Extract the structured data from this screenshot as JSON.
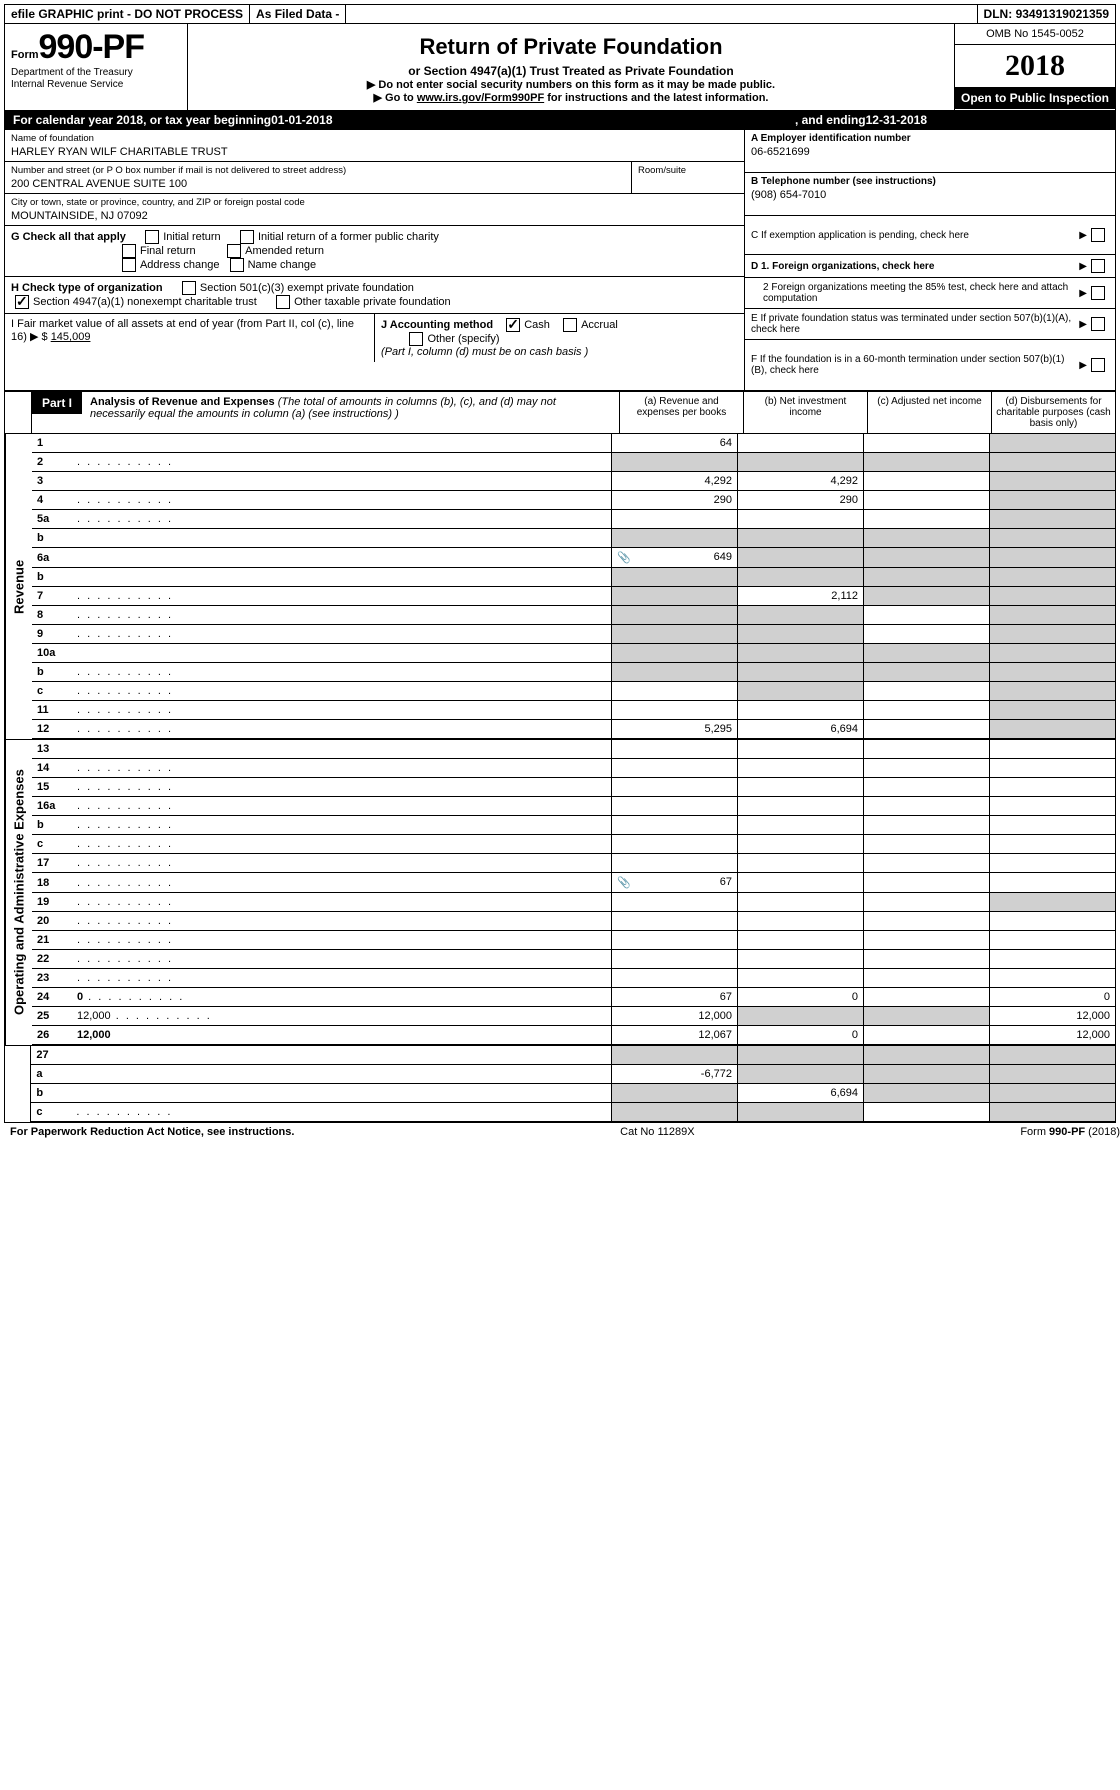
{
  "topbar": {
    "efile": "efile GRAPHIC print - DO NOT PROCESS",
    "asfiled": "As Filed Data -",
    "dln_label": "DLN:",
    "dln": "93491319021359"
  },
  "form_box": {
    "form_word": "Form",
    "form_number": "990-PF",
    "dept1": "Department of the Treasury",
    "dept2": "Internal Revenue Service"
  },
  "header": {
    "title": "Return of Private Foundation",
    "subtitle": "or Section 4947(a)(1) Trust Treated as Private Foundation",
    "note1": "Do not enter social security numbers on this form as it may be made public.",
    "note2_pre": "Go to ",
    "note2_link": "www.irs.gov/Form990PF",
    "note2_post": " for instructions and the latest information."
  },
  "header_right": {
    "omb": "OMB No 1545-0052",
    "year": "2018",
    "inspection": "Open to Public Inspection"
  },
  "cal_year": {
    "text_pre": "For calendar year 2018, or tax year beginning ",
    "begin": "01-01-2018",
    "mid": ", and ending ",
    "end": "12-31-2018"
  },
  "fields": {
    "name_label": "Name of foundation",
    "name": "HARLEY RYAN WILF CHARITABLE TRUST",
    "addr_label": "Number and street (or P O  box number if mail is not delivered to street address)",
    "addr": "200 CENTRAL AVENUE SUITE 100",
    "room_label": "Room/suite",
    "city_label": "City or town, state or province, country, and ZIP or foreign postal code",
    "city": "MOUNTAINSIDE, NJ  07092",
    "ein_label": "A Employer identification number",
    "ein": "06-6521699",
    "phone_label": "B Telephone number (see instructions)",
    "phone": "(908) 654-7010",
    "c_label": "C If exemption application is pending, check here",
    "d1": "D 1. Foreign organizations, check here",
    "d2": "2  Foreign organizations meeting the 85% test, check here and attach computation",
    "e_label": "E  If private foundation status was terminated under section 507(b)(1)(A), check here",
    "f_label": "F  If the foundation is in a 60-month termination under section 507(b)(1)(B), check here"
  },
  "g": {
    "label": "G Check all that apply",
    "initial": "Initial return",
    "initial_former": "Initial return of a former public charity",
    "final": "Final return",
    "amended": "Amended return",
    "address": "Address change",
    "name_change": "Name change"
  },
  "h": {
    "label": "H Check type of organization",
    "sec501": "Section 501(c)(3) exempt private foundation",
    "sec4947": "Section 4947(a)(1) nonexempt charitable trust",
    "other_taxable": "Other taxable private foundation"
  },
  "i": {
    "label_pre": "I Fair market value of all assets at end of year (from Part II, col  (c), line 16) ",
    "arrow": "▶",
    "dollar": "$",
    "value": "145,009"
  },
  "j": {
    "label": "J Accounting method",
    "cash": "Cash",
    "accrual": "Accrual",
    "other": "Other (specify)",
    "note": "(Part I, column (d) must be on cash basis )"
  },
  "part1": {
    "label": "Part I",
    "title": "Analysis of Revenue and Expenses",
    "desc": " (The total of amounts in columns (b), (c), and (d) may not necessarily equal the amounts in column (a) (see instructions) )",
    "col_a": "(a) Revenue and expenses per books",
    "col_b": "(b) Net investment income",
    "col_c": "(c) Adjusted net income",
    "col_d": "(d) Disbursements for charitable purposes (cash basis only)"
  },
  "vlabels": {
    "revenue": "Revenue",
    "expenses": "Operating and Administrative Expenses"
  },
  "lines": [
    {
      "n": "1",
      "d": "",
      "a": "64",
      "b": "",
      "c": "",
      "d_shade": true
    },
    {
      "n": "2",
      "d": "",
      "dots": true,
      "a": "",
      "b": "",
      "c": "",
      "a_shade": true,
      "b_shade": true,
      "c_shade": true,
      "d_shade": true
    },
    {
      "n": "3",
      "d": "",
      "a": "4,292",
      "b": "4,292",
      "c": "",
      "d_shade": true
    },
    {
      "n": "4",
      "d": "",
      "dots": true,
      "a": "290",
      "b": "290",
      "c": "",
      "d_shade": true
    },
    {
      "n": "5a",
      "d": "",
      "dots": true,
      "a": "",
      "b": "",
      "c": "",
      "d_shade": true
    },
    {
      "n": "b",
      "d": "",
      "a": "",
      "b": "",
      "c": "",
      "a_shade": true,
      "b_shade": true,
      "c_shade": true,
      "d_shade": true
    },
    {
      "n": "6a",
      "d": "",
      "icon": true,
      "a": "649",
      "b": "",
      "c": "",
      "b_shade": true,
      "c_shade": true,
      "d_shade": true
    },
    {
      "n": "b",
      "d": "",
      "a": "",
      "b": "",
      "c": "",
      "a_shade": true,
      "b_shade": true,
      "c_shade": true,
      "d_shade": true
    },
    {
      "n": "7",
      "d": "",
      "dots": true,
      "a": "",
      "b": "2,112",
      "c": "",
      "a_shade": true,
      "c_shade": true,
      "d_shade": true
    },
    {
      "n": "8",
      "d": "",
      "dots": true,
      "a": "",
      "b": "",
      "c": "",
      "a_shade": true,
      "b_shade": true,
      "d_shade": true
    },
    {
      "n": "9",
      "d": "",
      "dots": true,
      "a": "",
      "b": "",
      "c": "",
      "a_shade": true,
      "b_shade": true,
      "d_shade": true
    },
    {
      "n": "10a",
      "d": "",
      "a": "",
      "b": "",
      "c": "",
      "a_shade": true,
      "b_shade": true,
      "c_shade": true,
      "d_shade": true
    },
    {
      "n": "b",
      "d": "",
      "dots": true,
      "a": "",
      "b": "",
      "c": "",
      "a_shade": true,
      "b_shade": true,
      "c_shade": true,
      "d_shade": true
    },
    {
      "n": "c",
      "d": "",
      "dots": true,
      "a": "",
      "b": "",
      "c": "",
      "b_shade": true,
      "d_shade": true
    },
    {
      "n": "11",
      "d": "",
      "dots": true,
      "a": "",
      "b": "",
      "c": "",
      "d_shade": true
    },
    {
      "n": "12",
      "d": "",
      "dots": true,
      "bold": true,
      "a": "5,295",
      "b": "6,694",
      "c": "",
      "d_shade": true
    }
  ],
  "exp_lines": [
    {
      "n": "13",
      "d": "",
      "a": "",
      "b": "",
      "c": ""
    },
    {
      "n": "14",
      "d": "",
      "dots": true,
      "a": "",
      "b": "",
      "c": ""
    },
    {
      "n": "15",
      "d": "",
      "dots": true,
      "a": "",
      "b": "",
      "c": ""
    },
    {
      "n": "16a",
      "d": "",
      "dots": true,
      "a": "",
      "b": "",
      "c": ""
    },
    {
      "n": "b",
      "d": "",
      "dots": true,
      "a": "",
      "b": "",
      "c": ""
    },
    {
      "n": "c",
      "d": "",
      "dots": true,
      "a": "",
      "b": "",
      "c": ""
    },
    {
      "n": "17",
      "d": "",
      "dots": true,
      "a": "",
      "b": "",
      "c": ""
    },
    {
      "n": "18",
      "d": "",
      "dots": true,
      "icon": true,
      "a": "67",
      "b": "",
      "c": ""
    },
    {
      "n": "19",
      "d": "",
      "dots": true,
      "a": "",
      "b": "",
      "c": "",
      "d_shade": true
    },
    {
      "n": "20",
      "d": "",
      "dots": true,
      "a": "",
      "b": "",
      "c": ""
    },
    {
      "n": "21",
      "d": "",
      "dots": true,
      "a": "",
      "b": "",
      "c": ""
    },
    {
      "n": "22",
      "d": "",
      "dots": true,
      "a": "",
      "b": "",
      "c": ""
    },
    {
      "n": "23",
      "d": "",
      "dots": true,
      "a": "",
      "b": "",
      "c": ""
    },
    {
      "n": "24",
      "d": "0",
      "dots": true,
      "bold": true,
      "a": "67",
      "b": "0",
      "c": ""
    },
    {
      "n": "25",
      "d": "12,000",
      "dots": true,
      "a": "12,000",
      "b": "",
      "c": "",
      "b_shade": true,
      "c_shade": true
    },
    {
      "n": "26",
      "d": "12,000",
      "bold": true,
      "a": "12,067",
      "b": "0",
      "c": ""
    }
  ],
  "sum_lines": [
    {
      "n": "27",
      "d": "",
      "a": "",
      "b": "",
      "c": "",
      "a_shade": true,
      "b_shade": true,
      "c_shade": true,
      "d_shade": true
    },
    {
      "n": "a",
      "d": "",
      "bold": true,
      "a": "-6,772",
      "b": "",
      "c": "",
      "b_shade": true,
      "c_shade": true,
      "d_shade": true
    },
    {
      "n": "b",
      "d": "",
      "bold": true,
      "a": "",
      "b": "6,694",
      "c": "",
      "a_shade": true,
      "c_shade": true,
      "d_shade": true
    },
    {
      "n": "c",
      "d": "",
      "dots": true,
      "bold": true,
      "a": "",
      "b": "",
      "c": "",
      "a_shade": true,
      "b_shade": true,
      "d_shade": true
    }
  ],
  "footer": {
    "left": "For Paperwork Reduction Act Notice, see instructions.",
    "mid": "Cat  No  11289X",
    "right_pre": "Form ",
    "right_form": "990-PF",
    "right_post": " (2018)"
  }
}
